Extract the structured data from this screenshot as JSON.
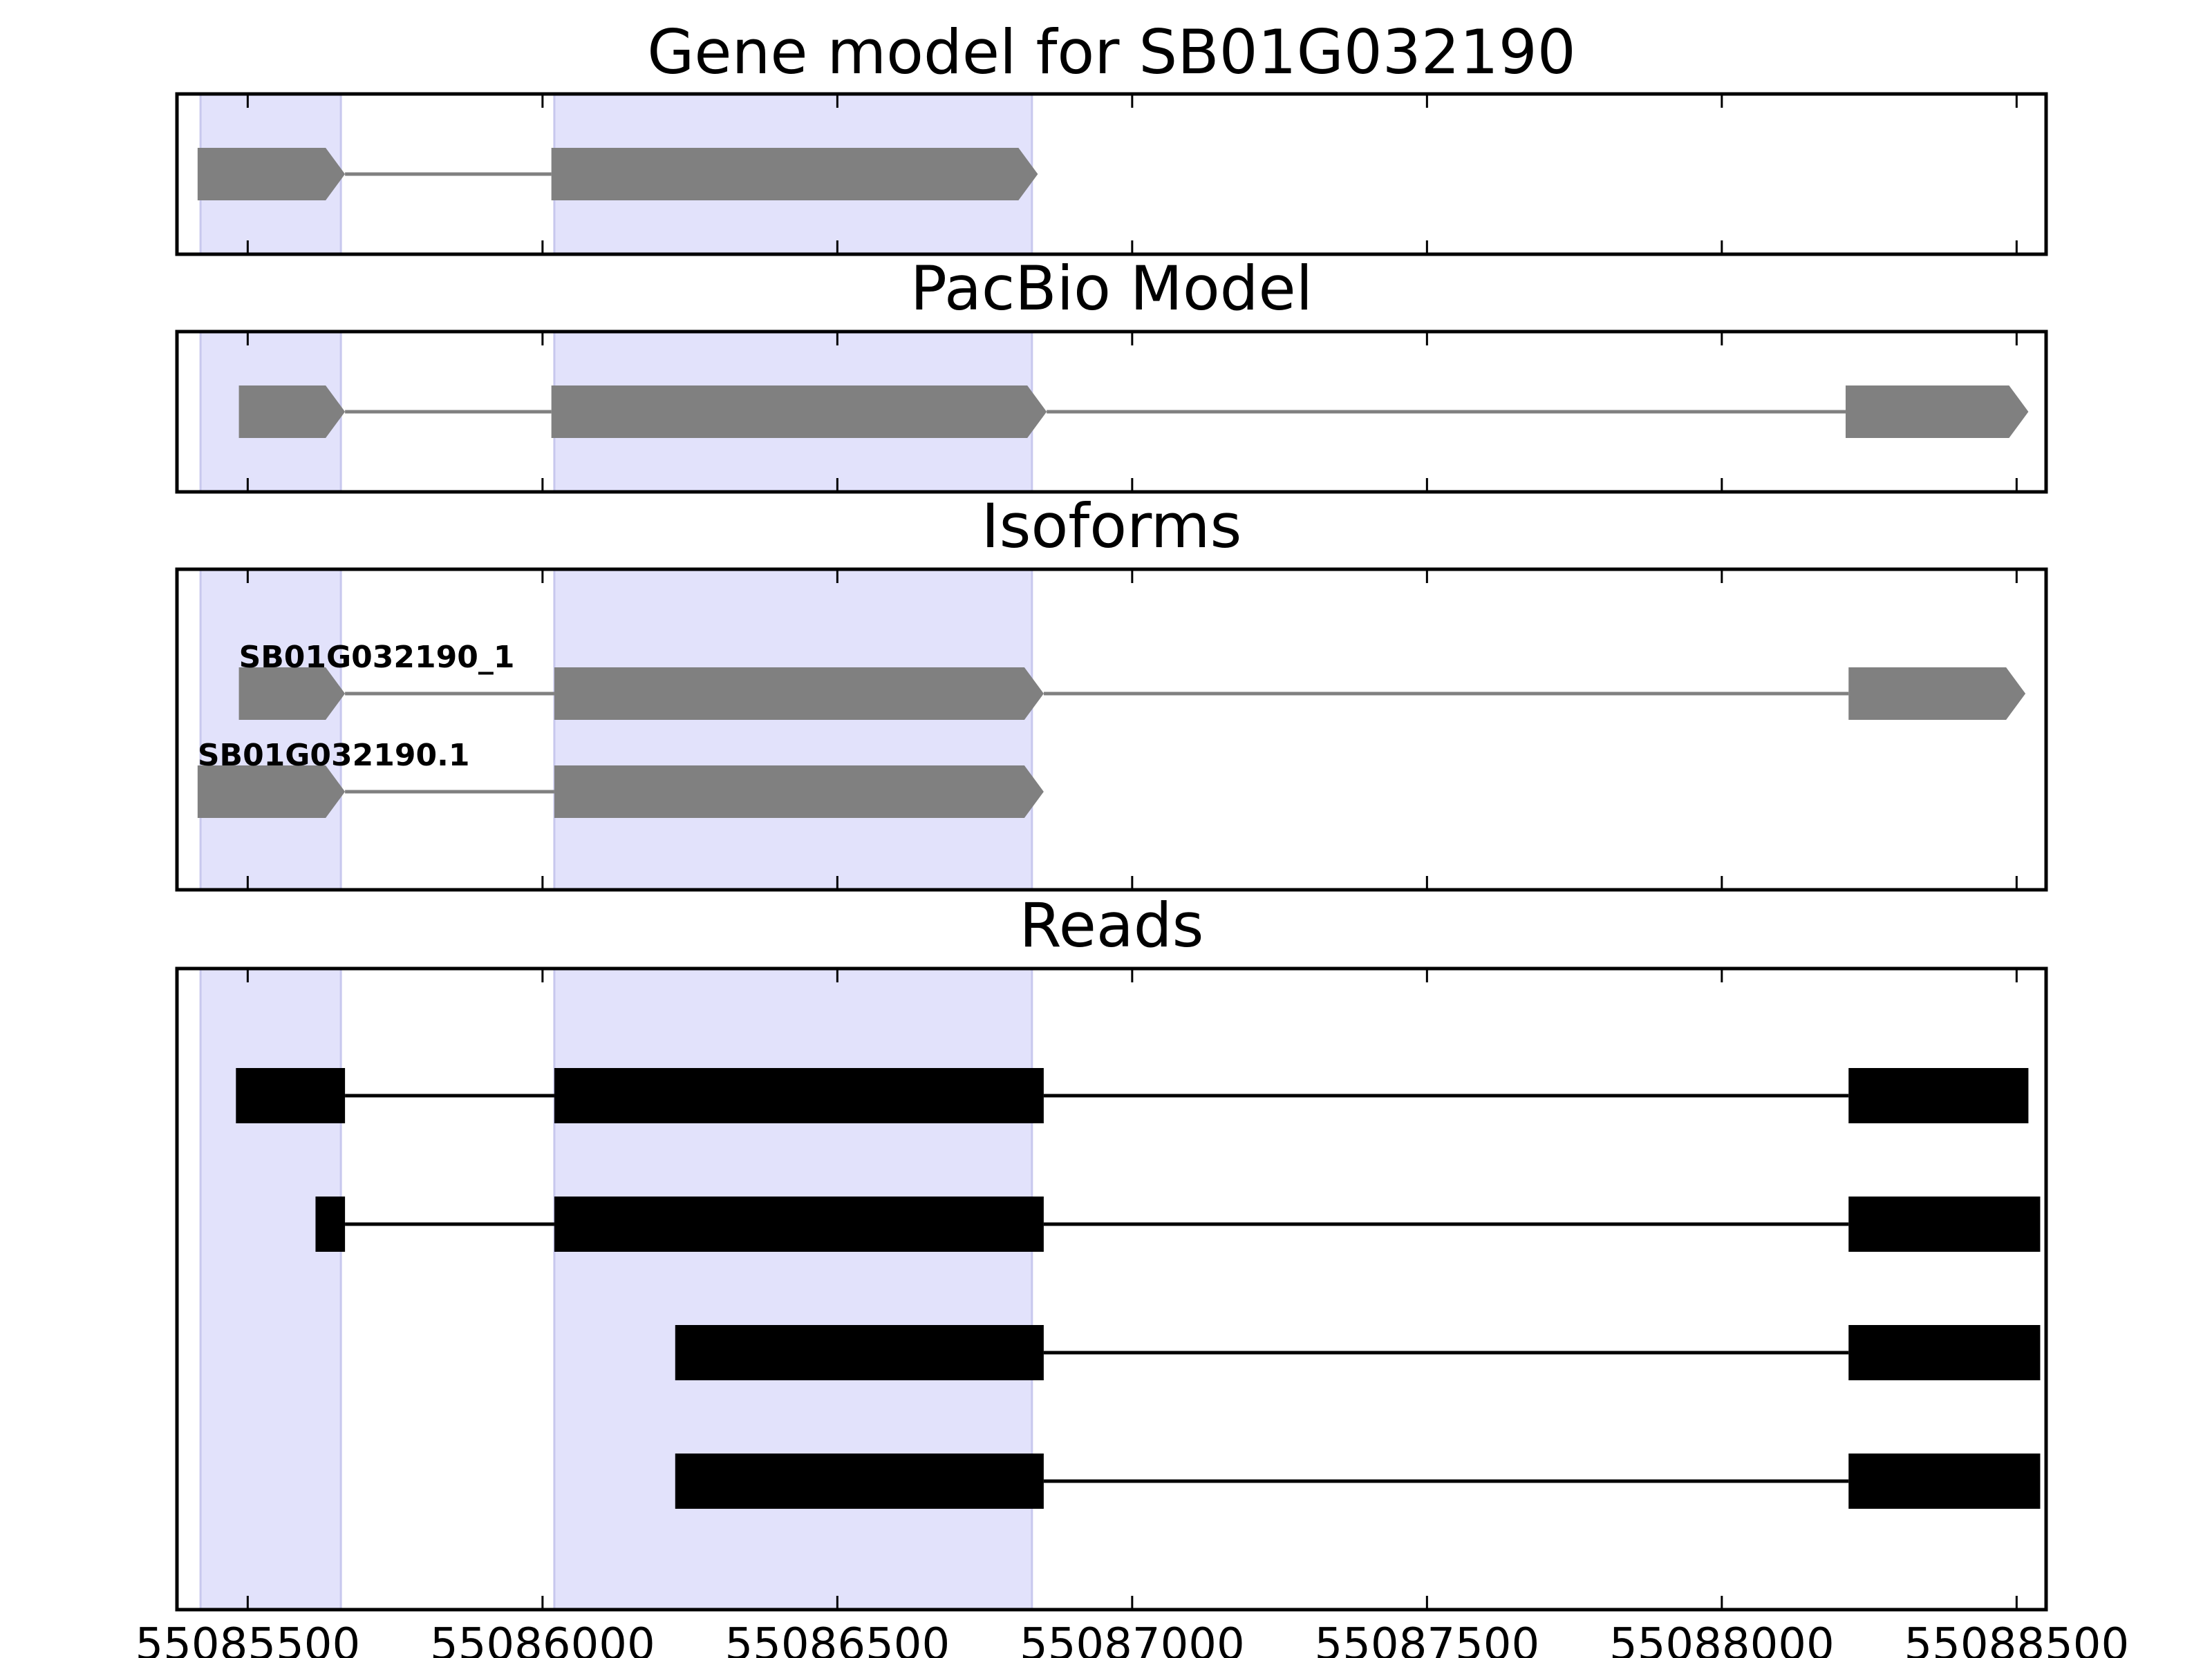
{
  "chart_data": [
    {
      "type": "gene-model",
      "title": "Gene model for SB01G032190",
      "xlim": [
        55085380,
        55088550
      ],
      "highlights": [
        [
          55085420,
          55085658
        ],
        [
          55086020,
          55086830
        ]
      ],
      "tracks": [
        {
          "label": "",
          "strand": "+",
          "exons": [
            [
              55085415,
              55085665
            ],
            [
              55086015,
              55086840
            ]
          ]
        }
      ]
    },
    {
      "type": "gene-model",
      "title": "PacBio Model",
      "xlim": [
        55085380,
        55088550
      ],
      "highlights": [
        [
          55085420,
          55085658
        ],
        [
          55086020,
          55086830
        ]
      ],
      "tracks": [
        {
          "label": "",
          "strand": "+",
          "exons": [
            [
              55085485,
              55085665
            ],
            [
              55086015,
              55086855
            ],
            [
              55088210,
              55088520
            ]
          ]
        }
      ]
    },
    {
      "type": "gene-model",
      "title": "Isoforms",
      "xlim": [
        55085380,
        55088550
      ],
      "highlights": [
        [
          55085420,
          55085658
        ],
        [
          55086020,
          55086830
        ]
      ],
      "tracks": [
        {
          "label": "SB01G032190_1",
          "strand": "+",
          "exons": [
            [
              55085485,
              55085665
            ],
            [
              55086020,
              55086850
            ],
            [
              55088215,
              55088515
            ]
          ]
        },
        {
          "label": "SB01G032190.1",
          "strand": "+",
          "exons": [
            [
              55085415,
              55085665
            ],
            [
              55086020,
              55086850
            ]
          ]
        }
      ]
    },
    {
      "type": "reads",
      "title": "Reads",
      "xlim": [
        55085380,
        55088550
      ],
      "highlights": [
        [
          55085420,
          55085658
        ],
        [
          55086020,
          55086830
        ]
      ],
      "xticks": [
        55085500,
        55086000,
        55086500,
        55087000,
        55087500,
        55088000,
        55088500
      ],
      "tracks": [
        {
          "label": "",
          "exons": [
            [
              55085480,
              55085665
            ],
            [
              55086020,
              55086850
            ],
            [
              55088215,
              55088520
            ]
          ]
        },
        {
          "label": "",
          "exons": [
            [
              55085615,
              55085665
            ],
            [
              55086020,
              55086850
            ],
            [
              55088215,
              55088540
            ]
          ]
        },
        {
          "label": "",
          "exons": [
            [
              55086225,
              55086850
            ],
            [
              55088215,
              55088540
            ]
          ]
        },
        {
          "label": "",
          "exons": [
            [
              55086225,
              55086850
            ],
            [
              55088215,
              55088540
            ]
          ]
        }
      ]
    }
  ],
  "colors": {
    "gene_feature": "#808080",
    "read_feature": "#000000",
    "highlight": "#e2e2fb",
    "highlight_edge": "#c8c8ee",
    "frame": "#000000"
  }
}
